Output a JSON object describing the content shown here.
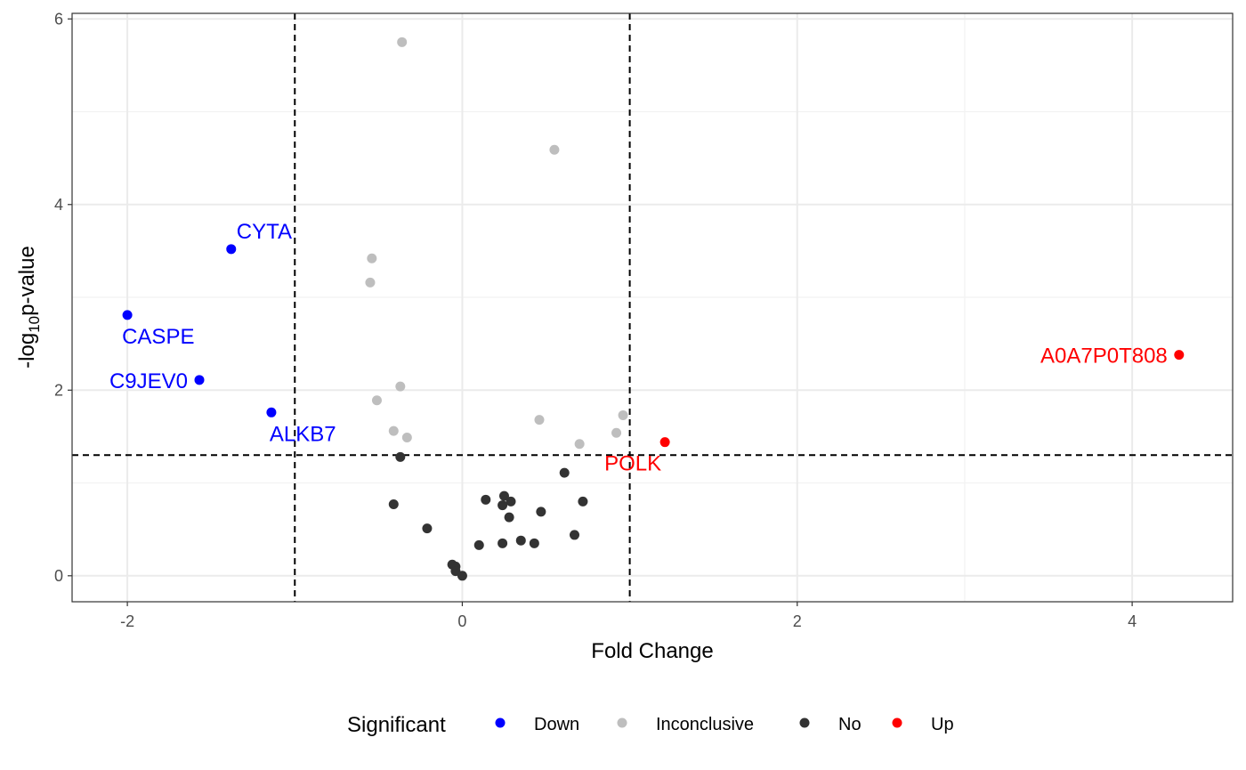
{
  "chart_data": {
    "type": "scatter",
    "xlabel": "Fold Change",
    "ylabel_prefix": "-log",
    "ylabel_sub": "10",
    "ylabel_suffix": "p-value",
    "xlim": [
      -2.33,
      4.6
    ],
    "ylim": [
      -0.28,
      6.06
    ],
    "x_ticks": [
      -2,
      0,
      2,
      4
    ],
    "y_ticks": [
      0,
      2,
      4,
      6
    ],
    "x_minor": [
      -1,
      1,
      3
    ],
    "y_minor": [
      1,
      3,
      5
    ],
    "grid": true,
    "thresholds": {
      "x": [
        -1,
        1
      ],
      "y": 1.3
    },
    "legend": {
      "title": "Significant",
      "position": "bottom",
      "entries": [
        {
          "name": "Down",
          "color": "#0000ff"
        },
        {
          "name": "Inconclusive",
          "color": "#bebebe"
        },
        {
          "name": "No",
          "color": "#333333"
        },
        {
          "name": "Up",
          "color": "#ff0000"
        }
      ]
    },
    "series": [
      {
        "name": "Down",
        "color": "#0000ff",
        "points": [
          {
            "x": -1.38,
            "y": 3.52,
            "label": "CYTA",
            "label_pos": "above-right"
          },
          {
            "x": -2.0,
            "y": 2.81,
            "label": "CASPE",
            "label_pos": "below"
          },
          {
            "x": -1.57,
            "y": 2.11,
            "label": "C9JEV0",
            "label_pos": "left"
          },
          {
            "x": -1.14,
            "y": 1.76,
            "label": "ALKB7",
            "label_pos": "below-right"
          }
        ]
      },
      {
        "name": "Inconclusive",
        "color": "#bebebe",
        "points": [
          {
            "x": -0.36,
            "y": 5.75
          },
          {
            "x": 0.55,
            "y": 4.59
          },
          {
            "x": -0.54,
            "y": 3.42
          },
          {
            "x": -0.55,
            "y": 3.16
          },
          {
            "x": -0.37,
            "y": 2.04
          },
          {
            "x": -0.51,
            "y": 1.89
          },
          {
            "x": -0.41,
            "y": 1.56
          },
          {
            "x": -0.33,
            "y": 1.49
          },
          {
            "x": 0.46,
            "y": 1.68
          },
          {
            "x": 0.7,
            "y": 1.42
          },
          {
            "x": 0.92,
            "y": 1.54
          },
          {
            "x": 0.96,
            "y": 1.73
          }
        ]
      },
      {
        "name": "No",
        "color": "#333333",
        "points": [
          {
            "x": -0.37,
            "y": 1.28
          },
          {
            "x": 0.61,
            "y": 1.11
          },
          {
            "x": -0.41,
            "y": 0.77
          },
          {
            "x": 0.14,
            "y": 0.82
          },
          {
            "x": 0.25,
            "y": 0.86
          },
          {
            "x": 0.29,
            "y": 0.8
          },
          {
            "x": 0.24,
            "y": 0.76
          },
          {
            "x": 0.28,
            "y": 0.63
          },
          {
            "x": 0.47,
            "y": 0.69
          },
          {
            "x": 0.72,
            "y": 0.8
          },
          {
            "x": -0.21,
            "y": 0.51
          },
          {
            "x": 0.1,
            "y": 0.33
          },
          {
            "x": 0.24,
            "y": 0.35
          },
          {
            "x": 0.35,
            "y": 0.38
          },
          {
            "x": 0.43,
            "y": 0.35
          },
          {
            "x": 0.67,
            "y": 0.44
          },
          {
            "x": -0.06,
            "y": 0.12
          },
          {
            "x": -0.04,
            "y": 0.1
          },
          {
            "x": -0.04,
            "y": 0.05
          },
          {
            "x": 0.0,
            "y": 0.0
          }
        ]
      },
      {
        "name": "Up",
        "color": "#ff0000",
        "points": [
          {
            "x": 4.28,
            "y": 2.38,
            "label": "A0A7P0T808",
            "label_pos": "left"
          },
          {
            "x": 1.21,
            "y": 1.44,
            "label": "POLK",
            "label_pos": "below-left"
          }
        ]
      }
    ]
  }
}
